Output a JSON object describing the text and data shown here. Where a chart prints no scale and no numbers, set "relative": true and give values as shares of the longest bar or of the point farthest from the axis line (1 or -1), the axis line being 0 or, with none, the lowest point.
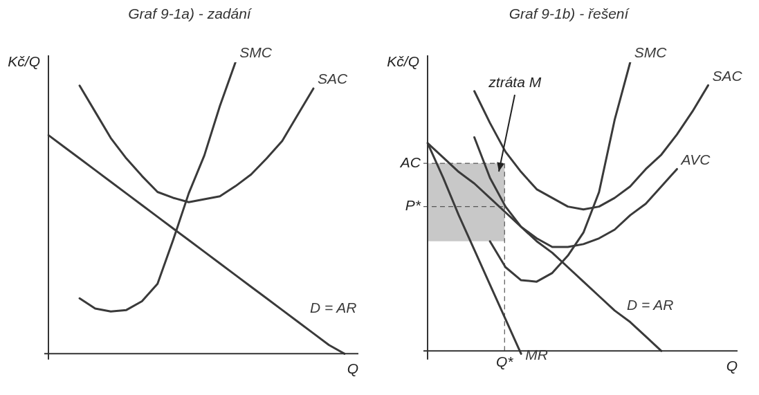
{
  "chart_data": [
    {
      "type": "line",
      "title": "Graf 9-1a) - zadání",
      "xlabel": "Q",
      "ylabel": "Kč/Q",
      "relative": true,
      "marker": "none",
      "categories": [
        null,
        null,
        null,
        null,
        null,
        null,
        null,
        null,
        null,
        null,
        null,
        null,
        null,
        null,
        null,
        null,
        null,
        null,
        null,
        null
      ],
      "series": [
        {
          "name": "SMC",
          "color": "#3a3a3a",
          "values": [
            null,
            null,
            0.19,
            0.155,
            0.145,
            0.15,
            0.18,
            0.24,
            0.39,
            0.55,
            0.68,
            0.85,
            1.0,
            null,
            null,
            null,
            null,
            null,
            null,
            null
          ]
        },
        {
          "name": "SAC",
          "color": "#3a3a3a",
          "values": [
            null,
            null,
            0.92,
            0.83,
            0.74,
            0.67,
            0.61,
            0.555,
            0.535,
            0.52,
            0.53,
            0.54,
            0.575,
            0.615,
            0.67,
            0.73,
            0.82,
            0.91,
            null,
            null
          ]
        },
        {
          "name": "D = AR",
          "color": "#3a3a3a",
          "values": [
            0.75,
            0.71,
            0.67,
            0.63,
            0.59,
            0.55,
            0.51,
            0.47,
            0.43,
            0.39,
            0.35,
            0.31,
            0.27,
            0.23,
            0.19,
            0.15,
            0.11,
            0.07,
            0.03,
            0
          ]
        }
      ]
    },
    {
      "type": "line",
      "title": "Graf 9-1b) - řešení",
      "xlabel": "Q",
      "ylabel": "Kč/Q",
      "relative": true,
      "marker": "none",
      "categories": [
        null,
        null,
        null,
        null,
        null,
        null,
        null,
        null,
        null,
        null,
        null,
        null,
        null,
        null,
        null,
        null,
        null,
        null,
        null,
        null
      ],
      "series": [
        {
          "name": "SMC",
          "color": "#3a3a3a",
          "values": [
            null,
            null,
            null,
            null,
            0.38,
            0.29,
            0.245,
            0.24,
            0.27,
            0.33,
            0.41,
            0.55,
            0.8,
            1.0,
            null,
            null,
            null,
            null,
            null,
            null
          ]
        },
        {
          "name": "SAC",
          "color": "#3a3a3a",
          "values": [
            null,
            null,
            null,
            0.9,
            0.79,
            0.69,
            0.62,
            0.56,
            0.53,
            0.5,
            0.49,
            0.5,
            0.53,
            0.57,
            0.63,
            0.68,
            0.75,
            0.83,
            0.92,
            null
          ]
        },
        {
          "name": "AVC",
          "color": "#3a3a3a",
          "values": [
            null,
            null,
            null,
            0.74,
            0.6,
            0.5,
            0.43,
            0.39,
            0.36,
            0.36,
            0.37,
            0.39,
            0.42,
            0.47,
            0.51,
            0.57,
            0.63,
            null,
            null,
            null
          ]
        },
        {
          "name": "D = AR",
          "color": "#3a3a3a",
          "values": [
            0.72,
            0.67,
            0.62,
            0.58,
            0.53,
            0.48,
            0.43,
            0.38,
            0.34,
            0.29,
            0.24,
            0.19,
            0.14,
            0.1,
            0.05,
            0,
            null,
            null,
            null,
            null
          ]
        },
        {
          "name": "MR",
          "color": "#3a3a3a",
          "values": [
            0.72,
            0.6,
            0.47,
            0.35,
            0.23,
            0.11,
            -0.01,
            null,
            null,
            null,
            null,
            null,
            null,
            null,
            null,
            null,
            null,
            null,
            null,
            null
          ]
        }
      ],
      "ref_lines": [
        {
          "axis": "y",
          "value": 0.65,
          "label": "AC",
          "line_style": "dashed",
          "color": "#555555"
        },
        {
          "axis": "y",
          "value": 0.5,
          "label": "P*",
          "line_style": "dashed",
          "color": "#555555"
        },
        {
          "axis": "x",
          "label": "Q*",
          "line_style": "dashed",
          "color": "#555555"
        }
      ],
      "bands": [
        {
          "axis": "y",
          "from": 0.38,
          "to": 0.65,
          "label": "ztráta M",
          "color": "#c8c8c8"
        }
      ]
    }
  ]
}
